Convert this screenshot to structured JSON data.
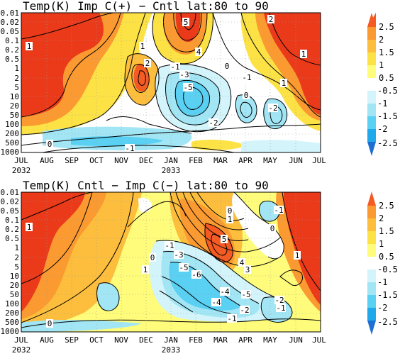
{
  "colors": {
    "c_m2_5": "#1e6fd2",
    "c_m2": "#1fa8ea",
    "c_m1_5": "#5ad0f2",
    "c_m1": "#a2e6f5",
    "c_m0_5": "#d2f4fa",
    "c_p0_5": "#fefc7a",
    "c_p1": "#fde245",
    "c_p1_5": "#fcbe3c",
    "c_p2": "#fb9a30",
    "c_p2_5": "#f45a22",
    "c_top": "#ea3a1a",
    "contour": "#000000",
    "grid": "#9a9a9a"
  },
  "chart_data": [
    {
      "type": "heatmap",
      "title": "Temp(K) Imp C(+) − Cntl  lat:80 to 90",
      "y_scale": "log-pressure (hPa), inverted",
      "y_ticks": [
        "0.01",
        "0.02",
        "0.05",
        "0.1",
        "0.2",
        "0.5",
        "1",
        "2",
        "5",
        "10",
        "20",
        "50",
        "100",
        "200",
        "500",
        "1000"
      ],
      "x_ticks": [
        "JUL",
        "AUG",
        "SEP",
        "OCT",
        "NOV",
        "DEC",
        "JAN",
        "FEB",
        "MAR",
        "APR",
        "MAY",
        "JUN",
        "JUL"
      ],
      "x_years": [
        "2032",
        "2033"
      ],
      "legend": {
        "levels": [
          "2.5",
          "2",
          "1.5",
          "1",
          "0.5",
          "-0.5",
          "-1",
          "-1.5",
          "-2",
          "-2.5"
        ]
      },
      "contour_labels": [
        "5",
        "4",
        "2",
        "1",
        "0",
        "-1",
        "-3",
        "-5",
        "-2",
        "-1",
        "0",
        "1",
        "2",
        "1",
        "1",
        "-1",
        "-2",
        "0"
      ]
    },
    {
      "type": "heatmap",
      "title": "Temp(K) Cntl − Imp C(−)  lat:80 to 90",
      "y_scale": "log-pressure (hPa), inverted",
      "y_ticks": [
        "0.01",
        "0.02",
        "0.05",
        "0.1",
        "0.2",
        "0.5",
        "1",
        "2",
        "5",
        "10",
        "20",
        "50",
        "100",
        "200",
        "500",
        "1000"
      ],
      "x_ticks": [
        "JUL",
        "AUG",
        "SEP",
        "OCT",
        "NOV",
        "DEC",
        "JAN",
        "FEB",
        "MAR",
        "APR",
        "MAY",
        "JUN",
        "JUL"
      ],
      "x_years": [
        "2032",
        "2033"
      ],
      "legend": {
        "levels": [
          "2.5",
          "2",
          "1.5",
          "1",
          "0.5",
          "-0.5",
          "-1",
          "-1.5",
          "-2",
          "-2.5"
        ]
      },
      "contour_labels": [
        "1",
        "0",
        "1",
        "5",
        "4",
        "3",
        "-5",
        "-6",
        "-4",
        "-5",
        "-4",
        "-3",
        "-1",
        "-2",
        "-1",
        "0",
        "0",
        "-1",
        "1",
        "0",
        "1",
        "-2",
        "-1"
      ]
    }
  ]
}
